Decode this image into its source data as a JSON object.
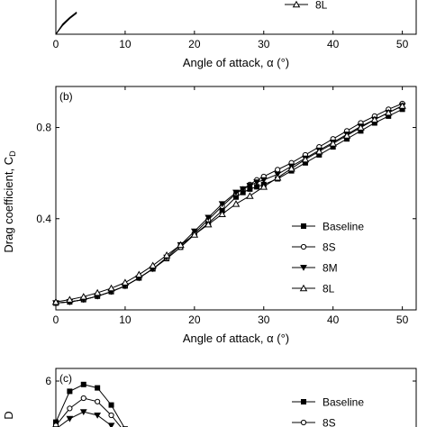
{
  "figure": {
    "chart_data": [
      {
        "panel": "a",
        "type": "line",
        "xlabel": "Angle of attack, α (°)",
        "ylabel": "",
        "xlim": [
          0,
          52
        ],
        "x_ticks": [
          "0",
          "10",
          "20",
          "30",
          "40",
          "50"
        ],
        "legend": [
          "8L"
        ],
        "series": [
          {
            "name": "Baseline",
            "x": [
              0,
              1,
              2,
              3
            ],
            "y": [
              0.0,
              0.35,
              0.6,
              0.8
            ]
          },
          {
            "name": "8S",
            "x": [
              0,
              1,
              2,
              3
            ],
            "y": [
              0.0,
              0.38,
              0.62,
              0.82
            ]
          },
          {
            "name": "8M",
            "x": [
              0,
              1,
              2,
              3
            ],
            "y": [
              0.0,
              0.36,
              0.6,
              0.8
            ]
          },
          {
            "name": "8L",
            "x": [
              0,
              1,
              2,
              3
            ],
            "y": [
              0.0,
              0.33,
              0.58,
              0.78
            ]
          }
        ]
      },
      {
        "panel": "b",
        "panel_label": "(b)",
        "type": "line",
        "xlabel": "Angle of attack, α (°)",
        "ylabel": "Drag coefficient, C",
        "ylabel_sub": "D",
        "xlim": [
          0,
          52
        ],
        "ylim": [
          0,
          0.98
        ],
        "x_ticks": [
          0,
          10,
          20,
          30,
          40,
          50
        ],
        "y_ticks": [
          0.4,
          0.8
        ],
        "x_tick_labels": [
          "0",
          "10",
          "20",
          "30",
          "40",
          "50"
        ],
        "y_tick_labels": [
          "0.4",
          "0.8"
        ],
        "legend_position": "lower-right",
        "series": [
          {
            "name": "Baseline",
            "marker": "square-filled",
            "x": [
              0,
              2,
              4,
              6,
              8,
              10,
              12,
              14,
              16,
              18,
              20,
              22,
              24,
              26,
              27,
              28,
              29,
              30,
              32,
              34,
              36,
              38,
              40,
              42,
              44,
              46,
              48,
              50
            ],
            "y": [
              0.03,
              0.035,
              0.045,
              0.06,
              0.08,
              0.105,
              0.14,
              0.18,
              0.225,
              0.275,
              0.33,
              0.38,
              0.435,
              0.495,
              0.515,
              0.53,
              0.54,
              0.55,
              0.575,
              0.61,
              0.645,
              0.68,
              0.715,
              0.75,
              0.785,
              0.82,
              0.85,
              0.88
            ]
          },
          {
            "name": "8S",
            "marker": "circle-open",
            "x": [
              0,
              2,
              4,
              6,
              8,
              10,
              12,
              14,
              16,
              18,
              20,
              22,
              24,
              26,
              27,
              28,
              29,
              30,
              32,
              34,
              36,
              38,
              40,
              42,
              44,
              46,
              48,
              50
            ],
            "y": [
              0.03,
              0.035,
              0.045,
              0.06,
              0.08,
              0.105,
              0.14,
              0.18,
              0.225,
              0.275,
              0.335,
              0.395,
              0.455,
              0.51,
              0.53,
              0.55,
              0.57,
              0.585,
              0.615,
              0.645,
              0.68,
              0.715,
              0.75,
              0.785,
              0.82,
              0.85,
              0.88,
              0.905
            ]
          },
          {
            "name": "8M",
            "marker": "triangle-down-filled",
            "x": [
              0,
              2,
              4,
              6,
              8,
              10,
              12,
              14,
              16,
              18,
              20,
              22,
              24,
              26,
              27,
              28,
              29,
              30,
              32,
              34,
              36,
              38,
              40,
              42,
              44,
              46,
              48,
              50
            ],
            "y": [
              0.03,
              0.035,
              0.045,
              0.06,
              0.08,
              0.105,
              0.14,
              0.18,
              0.23,
              0.285,
              0.345,
              0.405,
              0.465,
              0.515,
              0.53,
              0.545,
              0.56,
              0.57,
              0.595,
              0.63,
              0.665,
              0.7,
              0.735,
              0.77,
              0.805,
              0.835,
              0.865,
              0.895
            ]
          },
          {
            "name": "8L",
            "marker": "triangle-up-open",
            "x": [
              0,
              2,
              4,
              6,
              8,
              10,
              12,
              14,
              16,
              18,
              20,
              22,
              24,
              26,
              28,
              30,
              32,
              34,
              36,
              38,
              40,
              42,
              44,
              46,
              48,
              50
            ],
            "y": [
              0.035,
              0.045,
              0.058,
              0.075,
              0.095,
              0.12,
              0.155,
              0.195,
              0.24,
              0.285,
              0.33,
              0.375,
              0.42,
              0.465,
              0.5,
              0.54,
              0.58,
              0.62,
              0.66,
              0.695,
              0.73,
              0.765,
              0.8,
              0.835,
              0.865,
              0.895
            ]
          }
        ]
      },
      {
        "panel": "c",
        "panel_label": "(c)",
        "type": "line",
        "ylabel_sub": "D",
        "xlim": [
          0,
          52
        ],
        "ylim": [
          4.6,
          6.4
        ],
        "y_ticks": [
          6
        ],
        "y_tick_labels": [
          "6"
        ],
        "legend": [
          "Baseline",
          "8S"
        ],
        "series": [
          {
            "name": "Baseline",
            "marker": "square-filled",
            "x": [
              0,
              2,
              4,
              6,
              8,
              10
            ],
            "y": [
              4.8,
              5.7,
              5.9,
              5.8,
              5.3,
              4.6
            ]
          },
          {
            "name": "8S",
            "marker": "circle-open",
            "x": [
              0,
              2,
              4,
              6,
              8,
              10
            ],
            "y": [
              4.7,
              5.2,
              5.5,
              5.4,
              5.0,
              4.5
            ]
          },
          {
            "name": "8M",
            "marker": "triangle-down-filled",
            "x": [
              0,
              2,
              4,
              6,
              8
            ],
            "y": [
              4.6,
              4.9,
              5.1,
              5.0,
              4.7
            ]
          }
        ]
      }
    ]
  }
}
